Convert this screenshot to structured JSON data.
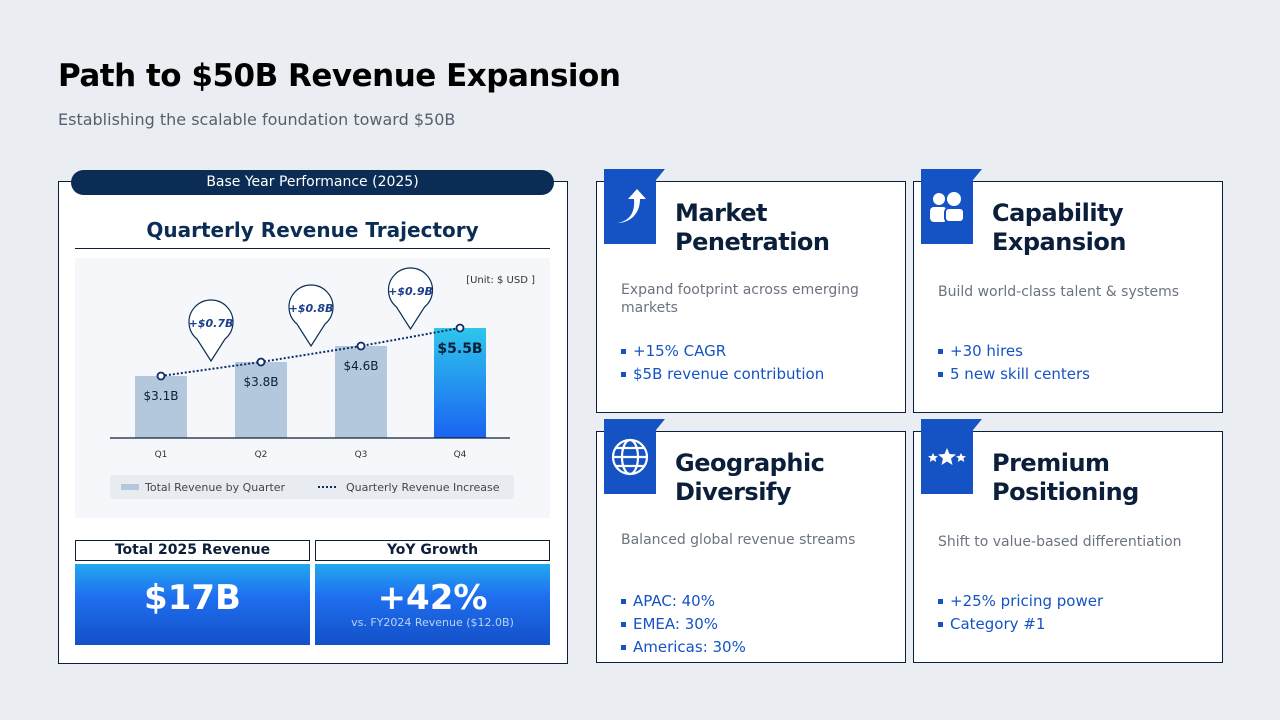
{
  "header": {
    "title": "Path to $50B Revenue Expansion",
    "subtitle": "Establishing the scalable foundation toward $50B"
  },
  "left_panel": {
    "pill": "Base Year Performance (2025)",
    "chart_title": "Quarterly Revenue Trajectory",
    "kpis": [
      {
        "label": "Total 2025 Revenue",
        "value": "$17B",
        "sub": ""
      },
      {
        "label": "YoY Growth",
        "value": "+42%",
        "sub": "vs. FY2024 Revenue ($12.0B)"
      }
    ]
  },
  "chart_data": {
    "type": "bar",
    "unit_note": "[Unit: $ USD ]",
    "categories": [
      "Q1",
      "Q2",
      "Q3",
      "Q4"
    ],
    "values": [
      3.1,
      3.8,
      4.6,
      5.5
    ],
    "value_labels": [
      "$3.1B",
      "$3.8B",
      "$4.6B",
      "$5.5B"
    ],
    "increase_labels": [
      "+$0.7B",
      "+$0.8B",
      "+$0.9B"
    ],
    "legend": [
      "Total Revenue by Quarter",
      "Quarterly Revenue Increase"
    ],
    "legend_placement": "bottom",
    "highlight_category": "Q4",
    "colors": {
      "bar": "#b3c8dc",
      "highlight_top": "#2ec6ec",
      "highlight_bottom": "#1b63f2",
      "line": "#0b2d6b"
    },
    "ylim": [
      0,
      7
    ]
  },
  "cards": [
    {
      "icon": "arrow-up-curve-icon",
      "title1": "Market",
      "title2": "Penetration",
      "desc": "Expand footprint across emerging markets",
      "bullets": [
        "+15% CAGR",
        "$5B revenue contribution"
      ]
    },
    {
      "icon": "users-icon",
      "title1": "Capability",
      "title2": "Expansion",
      "desc": "Build world-class talent & systems",
      "bullets": [
        "+30 hires",
        "5 new skill centers"
      ]
    },
    {
      "icon": "globe-icon",
      "title1": "Geographic",
      "title2": "Diversify",
      "desc": "Balanced global revenue streams",
      "bullets": [
        "APAC: 40%",
        "EMEA: 30%",
        "Americas: 30%"
      ]
    },
    {
      "icon": "stars-icon",
      "title1": "Premium",
      "title2": "Positioning",
      "desc": "Shift to value-based differentiation",
      "bullets": [
        "+25% pricing power",
        "Category #1"
      ]
    }
  ]
}
